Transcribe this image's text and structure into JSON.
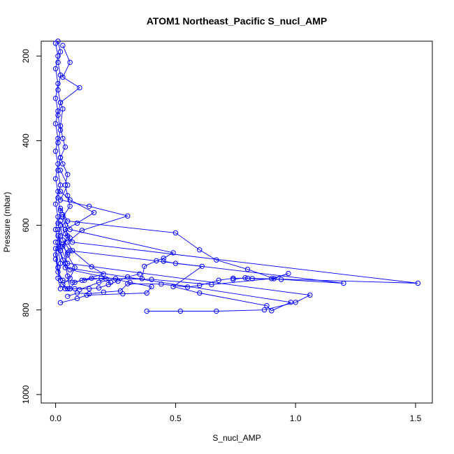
{
  "chart_data": {
    "type": "line",
    "title": "ATOM1 Northeast_Pacific S_nucl_AMP",
    "xlabel": "S_nucl_AMP",
    "ylabel": "Pressure (mbar)",
    "xlim": [
      -0.06,
      1.57
    ],
    "ylim": [
      1020,
      165
    ],
    "y_reversed": true,
    "x_ticks": [
      0.0,
      0.5,
      1.0,
      1.5
    ],
    "x_tick_labels": [
      "0.0",
      "0.5",
      "1.0",
      "1.5"
    ],
    "y_ticks": [
      200,
      400,
      600,
      800,
      1000
    ],
    "y_tick_labels": [
      "200",
      "400",
      "600",
      "800",
      "1000"
    ],
    "grid": false,
    "legend": "none",
    "marker": "open-circle",
    "color": "#0000ff",
    "series": [
      {
        "points": [
          [
            0.01,
            165
          ],
          [
            0.02,
            190
          ],
          [
            0.01,
            215
          ],
          [
            0.02,
            245
          ],
          [
            0.01,
            280
          ],
          [
            0.02,
            310
          ],
          [
            0.01,
            340
          ],
          [
            0.02,
            375
          ],
          [
            0.01,
            405
          ],
          [
            0.02,
            440
          ],
          [
            0.01,
            470
          ],
          [
            0.02,
            505
          ],
          [
            0.01,
            535
          ],
          [
            0.02,
            565
          ],
          [
            0.01,
            595
          ],
          [
            0.02,
            625
          ],
          [
            0.01,
            655
          ],
          [
            0.02,
            690
          ],
          [
            0.01,
            725
          ],
          [
            0.02,
            750
          ]
        ]
      },
      {
        "points": [
          [
            0.0,
            170
          ],
          [
            0.01,
            200
          ],
          [
            0.0,
            230
          ],
          [
            0.01,
            265
          ],
          [
            0.0,
            300
          ],
          [
            0.01,
            330
          ],
          [
            0.0,
            360
          ],
          [
            0.01,
            395
          ],
          [
            0.0,
            425
          ],
          [
            0.01,
            455
          ],
          [
            0.0,
            490
          ],
          [
            0.01,
            520
          ],
          [
            0.0,
            550
          ],
          [
            0.01,
            580
          ],
          [
            0.0,
            610
          ],
          [
            0.01,
            640
          ],
          [
            0.0,
            670
          ],
          [
            0.01,
            700
          ],
          [
            0.02,
            730
          ]
        ]
      },
      {
        "points": [
          [
            0.03,
            175
          ],
          [
            0.06,
            215
          ],
          [
            0.03,
            250
          ],
          [
            0.1,
            275
          ],
          [
            0.02,
            310
          ],
          [
            0.03,
            325
          ],
          [
            0.02,
            365
          ],
          [
            0.03,
            395
          ],
          [
            0.04,
            415
          ],
          [
            0.02,
            440
          ],
          [
            0.03,
            455
          ],
          [
            0.05,
            480
          ],
          [
            0.04,
            505
          ],
          [
            0.05,
            530
          ],
          [
            0.06,
            555
          ],
          [
            0.03,
            580
          ],
          [
            0.04,
            600
          ],
          [
            0.05,
            625
          ],
          [
            0.03,
            650
          ],
          [
            0.05,
            665
          ],
          [
            0.04,
            690
          ],
          [
            0.05,
            720
          ],
          [
            0.06,
            750
          ]
        ]
      },
      {
        "points": [
          [
            0.02,
            520
          ],
          [
            0.06,
            540
          ],
          [
            0.16,
            570
          ],
          [
            0.09,
            595
          ],
          [
            0.04,
            610
          ],
          [
            0.06,
            630
          ],
          [
            0.03,
            645
          ],
          [
            0.05,
            670
          ],
          [
            0.08,
            700
          ],
          [
            0.06,
            725
          ],
          [
            0.03,
            740
          ],
          [
            0.05,
            750
          ]
        ]
      },
      {
        "points": [
          [
            0.02,
            470
          ],
          [
            0.05,
            505
          ],
          [
            0.02,
            540
          ],
          [
            0.14,
            555
          ],
          [
            0.3,
            578
          ],
          [
            0.11,
            612
          ],
          [
            0.05,
            640
          ],
          [
            0.07,
            660
          ],
          [
            0.15,
            698
          ],
          [
            0.2,
            715
          ],
          [
            0.08,
            735
          ],
          [
            0.06,
            750
          ]
        ]
      },
      {
        "points": [
          [
            0.02,
            560
          ],
          [
            0.05,
            590
          ],
          [
            0.5,
            618
          ],
          [
            0.6,
            658
          ],
          [
            0.67,
            682
          ],
          [
            0.8,
            704
          ],
          [
            0.91,
            726
          ],
          [
            0.97,
            714
          ],
          [
            0.9,
            726
          ],
          [
            0.65,
            740
          ],
          [
            0.4,
            728
          ],
          [
            0.19,
            725
          ],
          [
            0.12,
            730
          ]
        ]
      },
      {
        "points": [
          [
            0.03,
            575
          ],
          [
            0.06,
            610
          ],
          [
            0.49,
            665
          ],
          [
            0.45,
            678
          ],
          [
            0.42,
            684
          ],
          [
            0.37,
            697
          ],
          [
            0.36,
            726
          ],
          [
            0.25,
            726
          ],
          [
            0.18,
            735
          ],
          [
            0.1,
            752
          ]
        ]
      },
      {
        "points": [
          [
            0.02,
            590
          ],
          [
            0.04,
            620
          ],
          [
            0.07,
            640
          ],
          [
            1.51,
            737
          ],
          [
            0.8,
            725
          ],
          [
            0.74,
            725
          ],
          [
            0.68,
            730
          ],
          [
            0.6,
            742
          ],
          [
            0.55,
            746
          ],
          [
            0.44,
            739
          ],
          [
            0.3,
            738
          ],
          [
            0.27,
            755
          ],
          [
            0.2,
            758
          ],
          [
            0.14,
            762
          ],
          [
            0.09,
            760
          ],
          [
            0.05,
            768
          ]
        ]
      },
      {
        "points": [
          [
            0.02,
            600
          ],
          [
            0.03,
            635
          ],
          [
            0.06,
            660
          ],
          [
            1.2,
            737
          ],
          [
            0.94,
            728
          ],
          [
            0.82,
            726
          ],
          [
            0.79,
            724
          ],
          [
            0.74,
            728
          ]
        ]
      },
      {
        "points": [
          [
            0.01,
            610
          ],
          [
            0.02,
            650
          ],
          [
            0.05,
            690
          ],
          [
            1.06,
            765
          ],
          [
            1.0,
            782
          ],
          [
            0.87,
            800
          ],
          [
            0.67,
            803
          ],
          [
            0.52,
            803
          ],
          [
            0.38,
            803
          ]
        ]
      },
      {
        "points": [
          [
            0.01,
            625
          ],
          [
            0.02,
            660
          ],
          [
            0.04,
            700
          ],
          [
            0.98,
            782
          ],
          [
            0.9,
            802
          ],
          [
            0.88,
            790
          ],
          [
            0.6,
            760
          ],
          [
            0.49,
            745
          ],
          [
            0.61,
            697
          ],
          [
            0.5,
            690
          ],
          [
            0.45,
            685
          ]
        ]
      },
      {
        "points": [
          [
            0.0,
            640
          ],
          [
            0.03,
            682
          ],
          [
            0.06,
            705
          ],
          [
            0.31,
            735
          ],
          [
            0.4,
            745
          ],
          [
            0.38,
            760
          ],
          [
            0.28,
            762
          ],
          [
            0.13,
            765
          ],
          [
            0.09,
            773
          ],
          [
            0.02,
            783
          ]
        ]
      },
      {
        "points": [
          [
            0.0,
            655
          ],
          [
            0.01,
            700
          ],
          [
            0.02,
            730
          ],
          [
            0.04,
            750
          ],
          [
            0.08,
            750
          ],
          [
            0.14,
            750
          ],
          [
            0.18,
            748
          ],
          [
            0.22,
            740
          ],
          [
            0.26,
            732
          ],
          [
            0.3,
            722
          ],
          [
            0.35,
            715
          ]
        ]
      },
      {
        "points": [
          [
            0.0,
            680
          ],
          [
            0.01,
            710
          ],
          [
            0.03,
            730
          ],
          [
            0.07,
            735
          ],
          [
            0.11,
            730
          ],
          [
            0.15,
            725
          ],
          [
            0.21,
            727
          ],
          [
            0.23,
            735
          ]
        ]
      }
    ]
  }
}
